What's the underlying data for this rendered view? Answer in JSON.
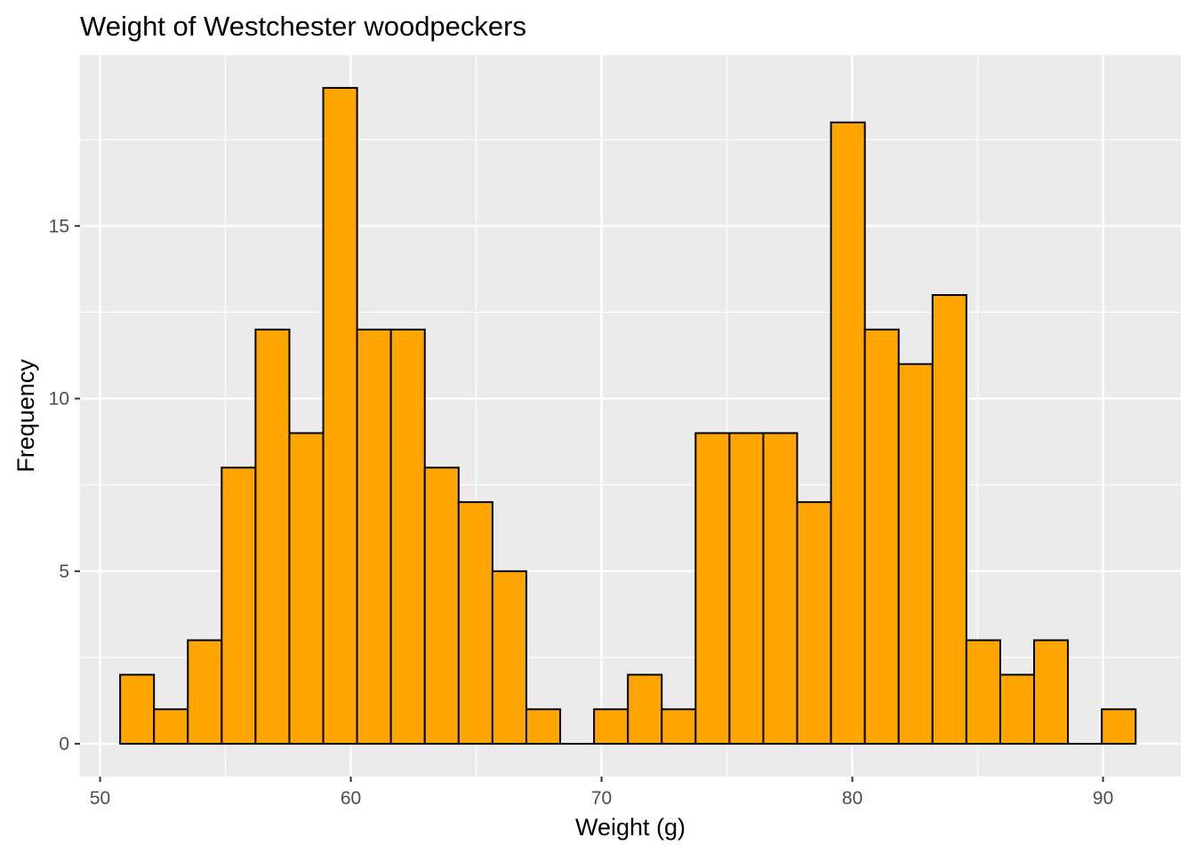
{
  "chart_data": {
    "type": "histogram",
    "title": "Weight of  Westchester woodpeckers",
    "xlabel": "Weight (g)",
    "ylabel": "Frequency",
    "xlim": [
      49.2,
      93.1
    ],
    "ylim": [
      -0.95,
      19.95
    ],
    "x_ticks": [
      50,
      60,
      70,
      80,
      90
    ],
    "y_ticks": [
      0,
      5,
      10,
      15
    ],
    "bin_start": 50.8,
    "bin_width": 1.35,
    "counts": [
      2,
      1,
      3,
      8,
      12,
      9,
      19,
      12,
      12,
      8,
      7,
      5,
      1,
      0,
      1,
      2,
      1,
      9,
      9,
      9,
      7,
      18,
      12,
      11,
      13,
      3,
      2,
      3,
      0,
      1
    ],
    "colors": {
      "bar_fill": "#FFA500",
      "bar_outline": "#000000",
      "panel_background": "#EBEBEB",
      "grid": "#FFFFFF"
    }
  }
}
